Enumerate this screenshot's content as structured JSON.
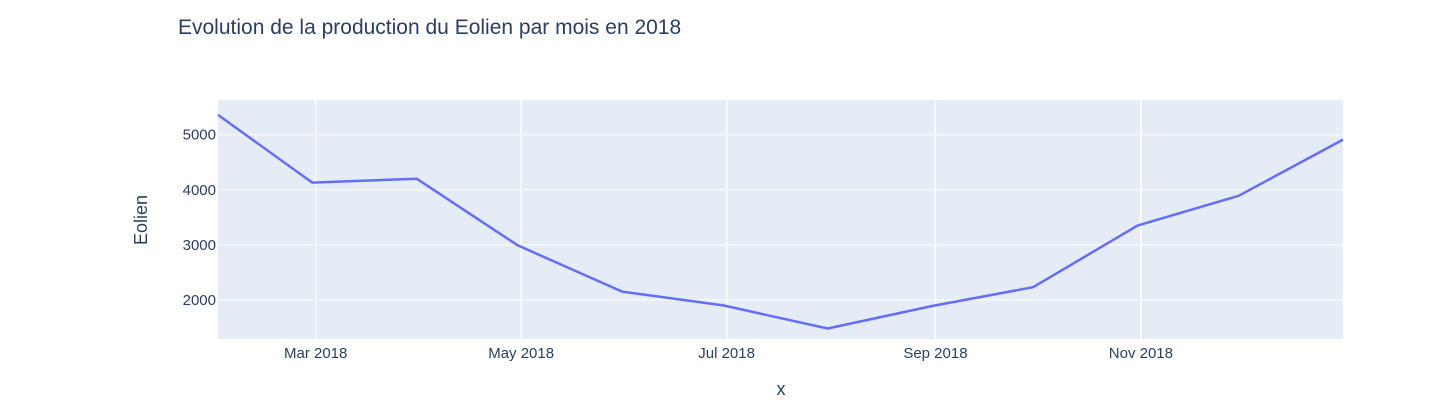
{
  "chart_data": {
    "type": "line",
    "title": "Evolution de la production du Eolien par mois en 2018",
    "xlabel": "x",
    "ylabel": "Eolien",
    "x": [
      "2018-01-31",
      "2018-02-28",
      "2018-03-31",
      "2018-04-30",
      "2018-05-31",
      "2018-06-30",
      "2018-07-31",
      "2018-08-31",
      "2018-09-30",
      "2018-10-31",
      "2018-11-30",
      "2018-12-31"
    ],
    "series": [
      {
        "values": [
          5360,
          4130,
          4200,
          2990,
          2150,
          1900,
          1480,
          1890,
          2230,
          3350,
          3890,
          4910
        ]
      }
    ],
    "xlim": [
      "2018-01-31",
      "2018-12-31"
    ],
    "ylim": [
      1290,
      5630
    ],
    "x_ticks": [
      {
        "date": "2018-03-01",
        "label": "Mar 2018"
      },
      {
        "date": "2018-05-01",
        "label": "May 2018"
      },
      {
        "date": "2018-07-01",
        "label": "Jul 2018"
      },
      {
        "date": "2018-09-01",
        "label": "Sep 2018"
      },
      {
        "date": "2018-11-01",
        "label": "Nov 2018"
      }
    ],
    "y_ticks": [
      2000,
      3000,
      4000,
      5000
    ],
    "grid": true,
    "colors": {
      "line": "#636efa",
      "plot_bg": "#e5ecf6",
      "grid": "#ffffff",
      "text": "#2a3f5f"
    }
  }
}
